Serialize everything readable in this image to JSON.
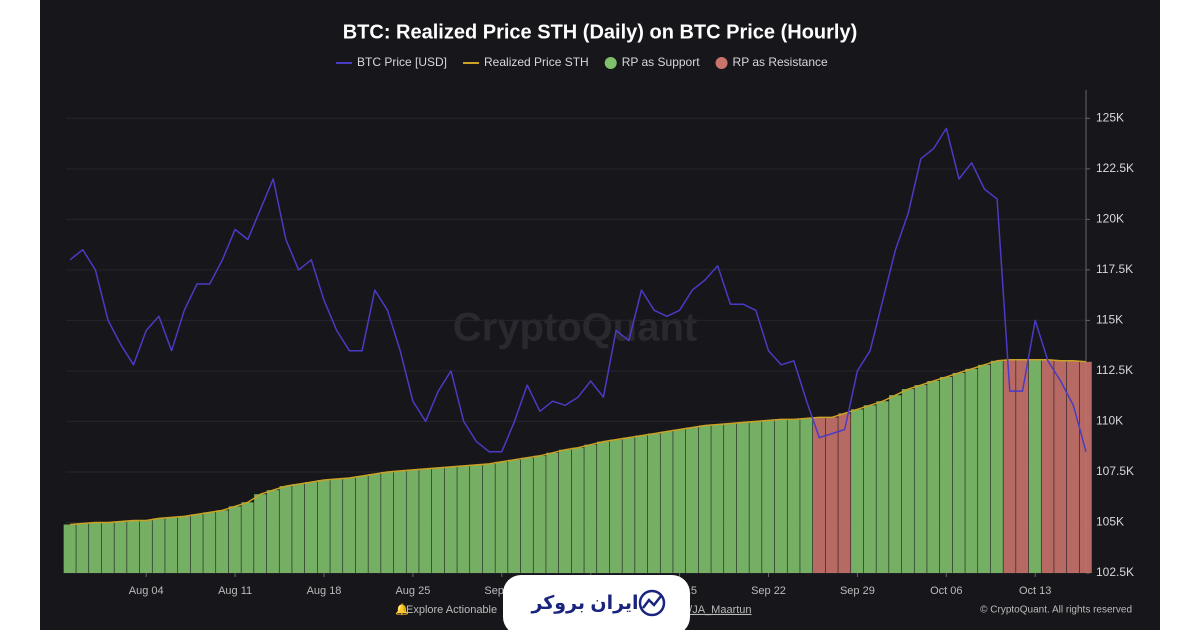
{
  "chart_data": {
    "type": "line",
    "title": "BTC: Realized Price STH (Daily) on BTC Price (Hourly)",
    "watermark": "CryptoQuant",
    "footer_left": "Explore Actionable",
    "footer_mid": "m/JA_Maartun",
    "footer_right": "© CryptoQuant. All rights reserved",
    "logo_text": "ایران بروکر",
    "x": [
      "Jul 29",
      "Jul 30",
      "Jul 31",
      "Aug 01",
      "Aug 02",
      "Aug 03",
      "Aug 04",
      "Aug 05",
      "Aug 06",
      "Aug 07",
      "Aug 08",
      "Aug 09",
      "Aug 10",
      "Aug 11",
      "Aug 12",
      "Aug 13",
      "Aug 14",
      "Aug 15",
      "Aug 16",
      "Aug 17",
      "Aug 18",
      "Aug 19",
      "Aug 20",
      "Aug 21",
      "Aug 22",
      "Aug 23",
      "Aug 24",
      "Aug 25",
      "Aug 26",
      "Aug 27",
      "Aug 28",
      "Aug 29",
      "Aug 30",
      "Aug 31",
      "Sep 01",
      "Sep 02",
      "Sep 03",
      "Sep 04",
      "Sep 05",
      "Sep 06",
      "Sep 07",
      "Sep 08",
      "Sep 09",
      "Sep 10",
      "Sep 11",
      "Sep 12",
      "Sep 13",
      "Sep 14",
      "Sep 15",
      "Sep 16",
      "Sep 17",
      "Sep 18",
      "Sep 19",
      "Sep 20",
      "Sep 21",
      "Sep 22",
      "Sep 23",
      "Sep 24",
      "Sep 25",
      "Sep 26",
      "Sep 27",
      "Sep 28",
      "Sep 29",
      "Sep 30",
      "Oct 01",
      "Oct 02",
      "Oct 03",
      "Oct 04",
      "Oct 05",
      "Oct 06",
      "Oct 07",
      "Oct 08",
      "Oct 09",
      "Oct 10",
      "Oct 11",
      "Oct 12",
      "Oct 13",
      "Oct 14",
      "Oct 15",
      "Oct 16",
      "Oct 17"
    ],
    "xticks": [
      "Aug 04",
      "Aug 11",
      "Aug 18",
      "Aug 25",
      "Sep 01",
      "Sep 08",
      "Sep 15",
      "Sep 22",
      "Sep 29",
      "Oct 06",
      "Oct 13"
    ],
    "series": [
      {
        "name": "BTC Price [USD]",
        "color": "#4a3bc4",
        "values": [
          118000,
          118500,
          117500,
          115000,
          113800,
          112800,
          114500,
          115200,
          113500,
          115500,
          116800,
          116800,
          118000,
          119500,
          119000,
          120500,
          122000,
          119000,
          117500,
          118000,
          116000,
          114500,
          113500,
          113500,
          116500,
          115500,
          113500,
          111000,
          110000,
          111500,
          112500,
          110000,
          109000,
          108500,
          108500,
          110000,
          111800,
          110500,
          111000,
          110800,
          111200,
          112000,
          111200,
          114500,
          114000,
          116500,
          115500,
          115200,
          115500,
          116500,
          117000,
          117700,
          115800,
          115800,
          115500,
          113500,
          112800,
          113000,
          111000,
          109200,
          109400,
          109600,
          112500,
          113500,
          116000,
          118500,
          120300,
          123000,
          123500,
          124500,
          122000,
          122800,
          121500,
          121000,
          111500,
          111500,
          115000,
          113000,
          112000,
          110800,
          108500
        ]
      },
      {
        "name": "Realized Price STH",
        "color": "#c9a227",
        "values": [
          104900,
          104950,
          105000,
          105000,
          105050,
          105100,
          105100,
          105200,
          105250,
          105300,
          105400,
          105500,
          105600,
          105800,
          106000,
          106400,
          106600,
          106800,
          106900,
          107000,
          107100,
          107150,
          107200,
          107300,
          107400,
          107500,
          107550,
          107600,
          107650,
          107700,
          107750,
          107800,
          107850,
          107900,
          108000,
          108100,
          108200,
          108300,
          108450,
          108600,
          108700,
          108850,
          109000,
          109100,
          109200,
          109300,
          109400,
          109500,
          109600,
          109700,
          109800,
          109850,
          109900,
          109950,
          110000,
          110050,
          110100,
          110100,
          110150,
          110200,
          110200,
          110400,
          110600,
          110800,
          111000,
          111300,
          111600,
          111800,
          112000,
          112200,
          112400,
          112600,
          112800,
          113000,
          113050,
          113050,
          113050,
          113050,
          113000,
          113000,
          112950
        ]
      }
    ],
    "fill_series": [
      {
        "name": "RP as Support",
        "color": "#7fc06c"
      },
      {
        "name": "RP as Resistance",
        "color": "#c9736c"
      }
    ],
    "ylim": [
      102500,
      126400
    ],
    "yticks": [
      {
        "value": 102500,
        "label": "102.5K"
      },
      {
        "value": 105000,
        "label": "105K"
      },
      {
        "value": 107500,
        "label": "107.5K"
      },
      {
        "value": 110000,
        "label": "110K"
      },
      {
        "value": 112500,
        "label": "112.5K"
      },
      {
        "value": 115000,
        "label": "115K"
      },
      {
        "value": 117500,
        "label": "117.5K"
      },
      {
        "value": 120000,
        "label": "120K"
      },
      {
        "value": 122500,
        "label": "122.5K"
      },
      {
        "value": 125000,
        "label": "125K"
      }
    ],
    "grid": true
  }
}
